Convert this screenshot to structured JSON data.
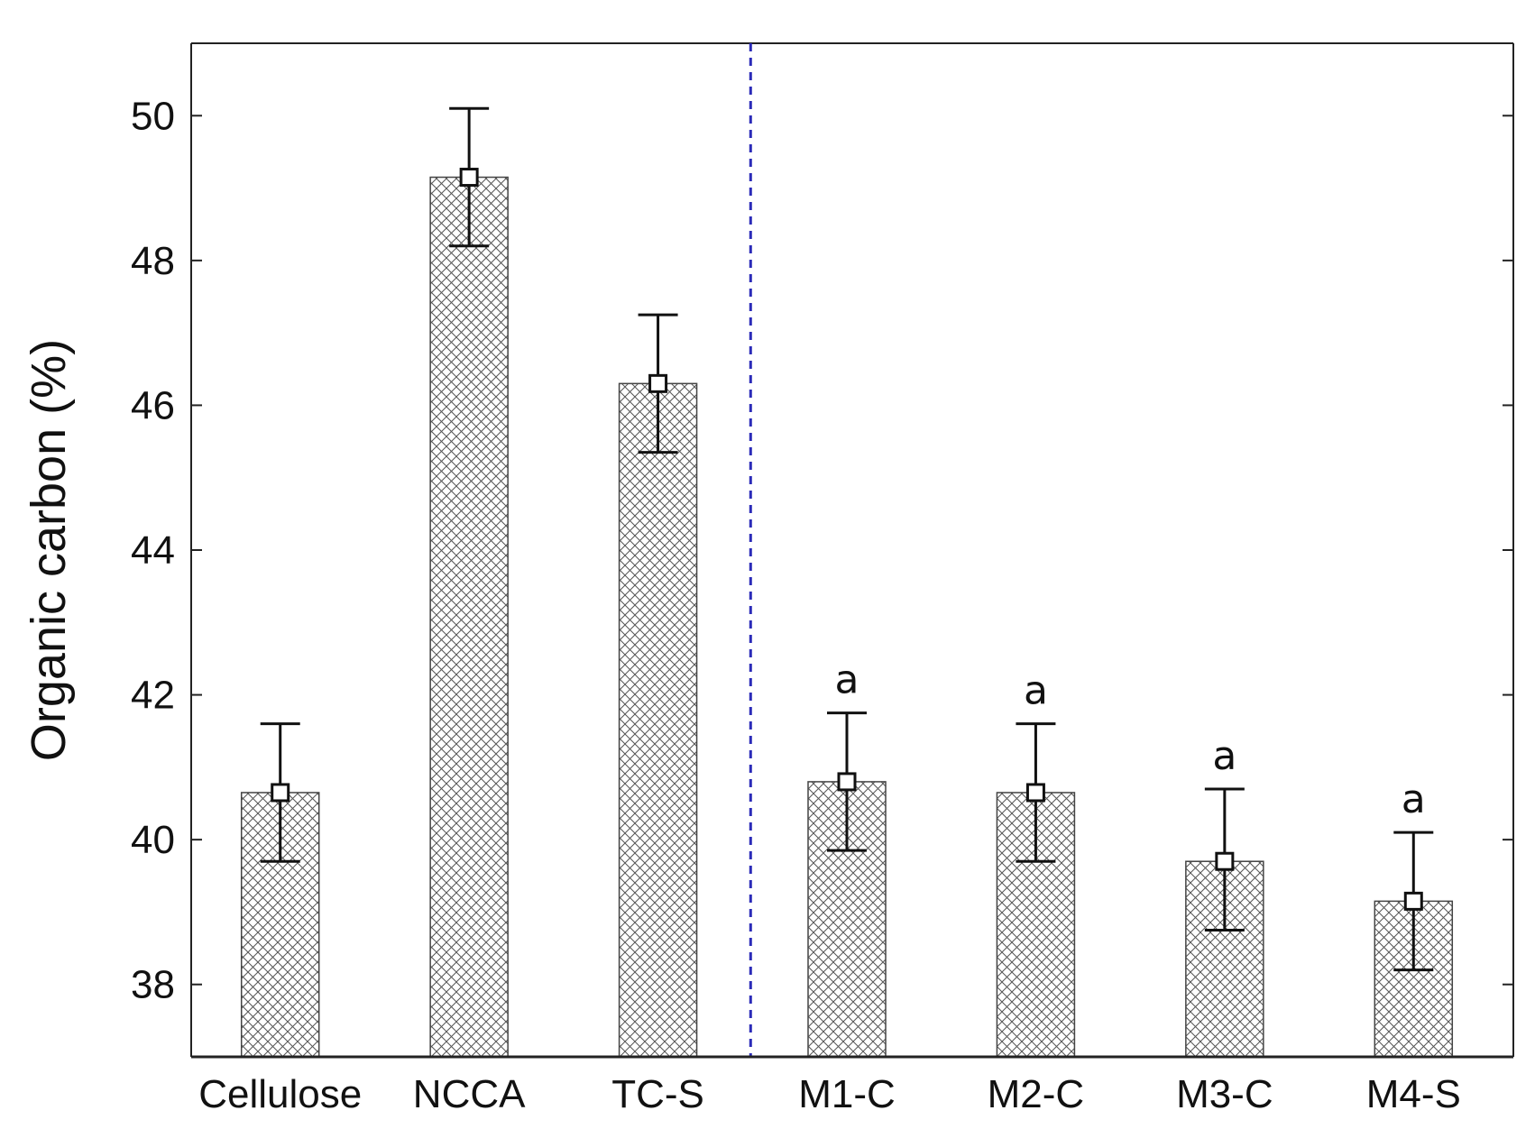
{
  "chart_data": {
    "type": "bar",
    "title": "",
    "xlabel": "",
    "ylabel": "Organic carbon (%)",
    "ylim": [
      37,
      51
    ],
    "yticks": [
      38,
      40,
      42,
      44,
      46,
      48,
      50
    ],
    "ytick_labels": [
      "38",
      "40",
      "42",
      "44",
      "46",
      "48",
      "50"
    ],
    "grid": false,
    "legend": "none",
    "divider_after_category": "TC-S",
    "divider_color": "#2b2bb8",
    "bar_pattern": "crosshatch",
    "categories": [
      "Cellulose",
      "NCCA",
      "TC-S",
      "M1-C",
      "M2-C",
      "M3-C",
      "M4-S"
    ],
    "values": [
      40.65,
      49.15,
      46.3,
      40.8,
      40.65,
      39.7,
      39.15
    ],
    "error_low": [
      39.7,
      48.2,
      45.35,
      39.85,
      39.7,
      38.75,
      38.2
    ],
    "error_high": [
      41.6,
      50.1,
      47.25,
      41.75,
      41.6,
      40.7,
      40.1
    ],
    "annotations": [
      "",
      "",
      "",
      "a",
      "a",
      "a",
      "a"
    ]
  }
}
